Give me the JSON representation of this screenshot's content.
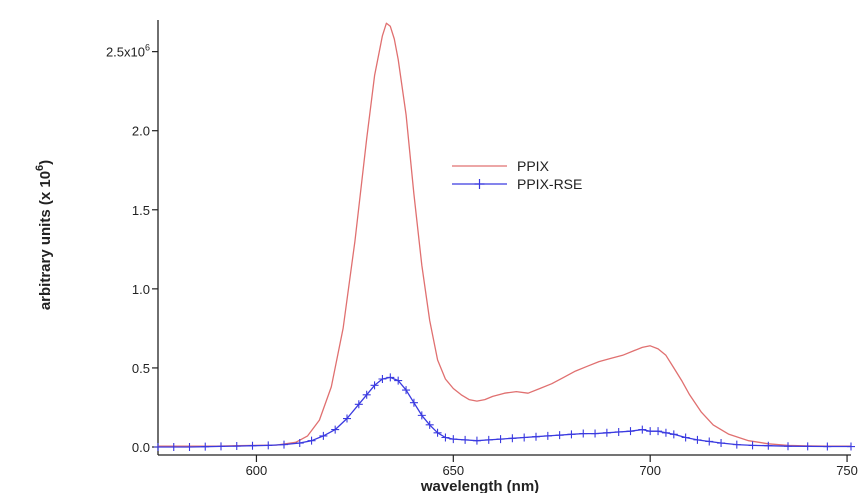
{
  "chart_data": {
    "type": "line",
    "xlabel": "wavelength (nm)",
    "ylabel": "arbitrary units (x 10",
    "ylabel_exponent": "6",
    "ylabel_close": ")",
    "xlim": [
      575,
      751
    ],
    "ylim": [
      0,
      2.7
    ],
    "x_ticks": [
      600,
      650,
      700,
      750
    ],
    "x_tick_labels": [
      "600",
      "650",
      "700",
      "750"
    ],
    "y_ticks": [
      0,
      0.5,
      1.0,
      1.5,
      2.0,
      2.5
    ],
    "y_tick_labels": [
      "0.0",
      "0.5",
      "1.0",
      "1.5",
      "2.0",
      "2.5x10"
    ],
    "y_top_label_exponent": "6",
    "grid": false,
    "legend_position": "center-right",
    "colors": {
      "PPIX": "#e07070",
      "PPIX-RSE": "#3a3ae0"
    },
    "series": [
      {
        "name": "PPIX",
        "marker": "none",
        "x": [
          575,
          580,
          585,
          590,
          595,
          600,
          605,
          610,
          613,
          616,
          619,
          622,
          625,
          628,
          630,
          632,
          633,
          634,
          635,
          636,
          638,
          640,
          642,
          644,
          646,
          648,
          650,
          652,
          654,
          656,
          658,
          660,
          663,
          666,
          669,
          672,
          675,
          678,
          681,
          684,
          687,
          690,
          693,
          696,
          698,
          700,
          702,
          704,
          706,
          708,
          710,
          713,
          716,
          720,
          725,
          730,
          735,
          740,
          745,
          751
        ],
        "y": [
          0.005,
          0.005,
          0.005,
          0.006,
          0.008,
          0.01,
          0.012,
          0.03,
          0.07,
          0.17,
          0.38,
          0.75,
          1.3,
          1.95,
          2.35,
          2.6,
          2.68,
          2.66,
          2.58,
          2.45,
          2.1,
          1.6,
          1.15,
          0.8,
          0.55,
          0.43,
          0.37,
          0.33,
          0.3,
          0.29,
          0.3,
          0.32,
          0.34,
          0.35,
          0.34,
          0.37,
          0.4,
          0.44,
          0.48,
          0.51,
          0.54,
          0.56,
          0.58,
          0.61,
          0.63,
          0.64,
          0.62,
          0.58,
          0.5,
          0.42,
          0.33,
          0.22,
          0.14,
          0.08,
          0.04,
          0.02,
          0.01,
          0.007,
          0.005,
          0.005
        ]
      },
      {
        "name": "PPIX-RSE",
        "marker": "+",
        "x": [
          575,
          579,
          583,
          587,
          591,
          595,
          599,
          603,
          607,
          611,
          614,
          617,
          620,
          623,
          626,
          628,
          630,
          632,
          634,
          636,
          638,
          640,
          642,
          644,
          646,
          648,
          650,
          653,
          656,
          659,
          662,
          665,
          668,
          671,
          674,
          677,
          680,
          683,
          686,
          689,
          692,
          695,
          698,
          700,
          702,
          704,
          706,
          709,
          712,
          715,
          718,
          722,
          726,
          730,
          735,
          740,
          745,
          751
        ],
        "y": [
          0.0,
          0.0,
          0.0,
          0.002,
          0.004,
          0.006,
          0.008,
          0.01,
          0.015,
          0.025,
          0.04,
          0.07,
          0.11,
          0.18,
          0.27,
          0.33,
          0.39,
          0.43,
          0.44,
          0.42,
          0.36,
          0.28,
          0.2,
          0.14,
          0.09,
          0.06,
          0.05,
          0.045,
          0.04,
          0.045,
          0.05,
          0.055,
          0.06,
          0.065,
          0.07,
          0.075,
          0.08,
          0.085,
          0.085,
          0.09,
          0.095,
          0.1,
          0.11,
          0.1,
          0.1,
          0.09,
          0.08,
          0.06,
          0.045,
          0.035,
          0.025,
          0.015,
          0.01,
          0.008,
          0.005,
          0.004,
          0.003,
          0.003
        ]
      }
    ]
  }
}
